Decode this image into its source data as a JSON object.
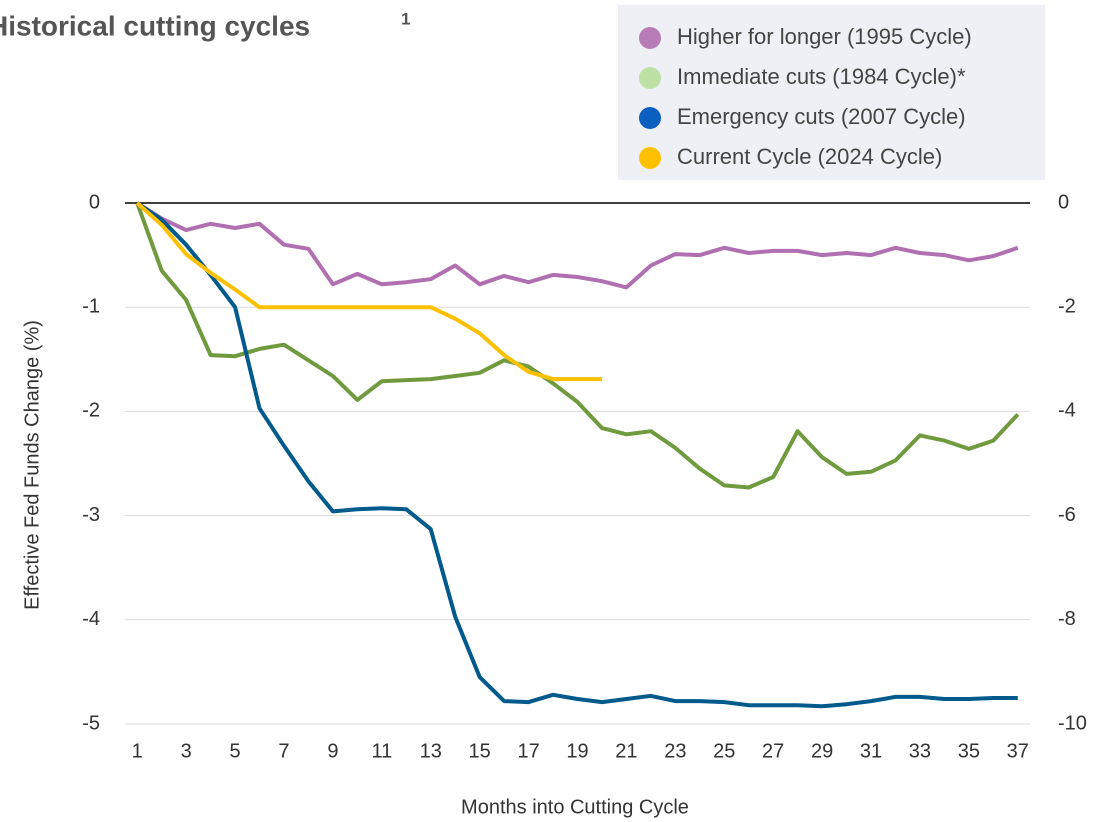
{
  "chart_data": {
    "type": "line",
    "title": "Historical cutting cycles",
    "title_superscript": "1",
    "xlabel": "Months into Cutting Cycle",
    "ylabel": "Effective Fed Funds Change (%)",
    "x": [
      1,
      2,
      3,
      4,
      5,
      6,
      7,
      8,
      9,
      10,
      11,
      12,
      13,
      14,
      15,
      16,
      17,
      18,
      19,
      20,
      21,
      22,
      23,
      24,
      25,
      26,
      27,
      28,
      29,
      30,
      31,
      32,
      33,
      34,
      35,
      36,
      37
    ],
    "xlim": [
      0.5,
      37.5
    ],
    "xticks": [
      1,
      3,
      5,
      7,
      9,
      11,
      13,
      15,
      17,
      19,
      21,
      23,
      25,
      27,
      29,
      31,
      33,
      35,
      37
    ],
    "ylim": [
      -5,
      0
    ],
    "yticks": [
      0,
      -1,
      -2,
      -3,
      -4,
      -5
    ],
    "y2lim": [
      -10,
      0
    ],
    "y2ticks": [
      0,
      -2,
      -4,
      -6,
      -8,
      -10
    ],
    "grid": true,
    "legend": "upper right",
    "series": [
      {
        "name": "Higher for longer (1995 Cycle)",
        "color": "#b06fb0",
        "legend_color": "#b77bb8",
        "values": [
          0,
          -0.15,
          -0.26,
          -0.2,
          -0.24,
          -0.2,
          -0.4,
          -0.44,
          -0.78,
          -0.68,
          -0.78,
          -0.76,
          -0.73,
          -0.6,
          -0.78,
          -0.7,
          -0.76,
          -0.69,
          -0.71,
          -0.75,
          -0.81,
          -0.6,
          -0.49,
          -0.5,
          -0.43,
          -0.48,
          -0.46,
          -0.46,
          -0.5,
          -0.48,
          -0.5,
          -0.43,
          -0.48,
          -0.5,
          -0.55,
          -0.51,
          -0.43
        ]
      },
      {
        "name": "Immediate cuts (1984 Cycle)*",
        "color": "#6f9a3e",
        "legend_color": "#bde0a5",
        "values": [
          0,
          -0.65,
          -0.93,
          -1.46,
          -1.47,
          -1.4,
          -1.36,
          -1.51,
          -1.66,
          -1.89,
          -1.71,
          -1.7,
          -1.69,
          -1.66,
          -1.63,
          -1.51,
          -1.57,
          -1.73,
          -1.91,
          -2.16,
          -2.22,
          -2.19,
          -2.35,
          -2.55,
          -2.71,
          -2.73,
          -2.63,
          -2.19,
          -2.44,
          -2.6,
          -2.58,
          -2.47,
          -2.23,
          -2.28,
          -2.36,
          -2.28,
          -2.03
        ]
      },
      {
        "name": "Emergency cuts (2007 Cycle)",
        "color": "#005a8c",
        "legend_color": "#0a5fc0",
        "values": [
          0,
          -0.16,
          -0.4,
          -0.69,
          -1.0,
          -1.97,
          -2.33,
          -2.67,
          -2.96,
          -2.94,
          -2.93,
          -2.94,
          -3.13,
          -3.97,
          -4.55,
          -4.78,
          -4.79,
          -4.72,
          -4.76,
          -4.79,
          -4.76,
          -4.73,
          -4.78,
          -4.78,
          -4.79,
          -4.82,
          -4.82,
          -4.82,
          -4.83,
          -4.81,
          -4.78,
          -4.74,
          -4.74,
          -4.76,
          -4.76,
          -4.75,
          -4.75
        ]
      },
      {
        "name": "Current Cycle (2024 Cycle)",
        "color": "#ffc000",
        "legend_color": "#ffc000",
        "values": [
          0,
          -0.21,
          -0.49,
          -0.67,
          -0.83,
          -1,
          -1,
          -1,
          -1,
          -1,
          -1,
          -1,
          -1,
          -1.11,
          -1.25,
          -1.46,
          -1.62,
          -1.69,
          -1.69,
          -1.69,
          null,
          null,
          null,
          null,
          null,
          null,
          null,
          null,
          null,
          null,
          null,
          null,
          null,
          null,
          null,
          null,
          null
        ]
      }
    ]
  }
}
